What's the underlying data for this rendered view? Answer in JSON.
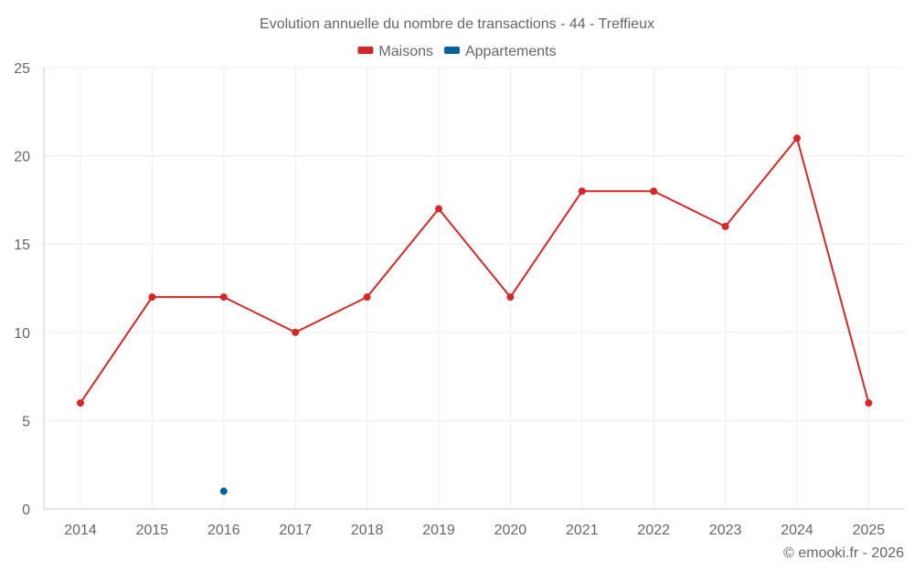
{
  "chart_data": {
    "type": "line",
    "title": "Evolution annuelle du nombre de transactions - 44 - Treffieux",
    "xlabel": "",
    "ylabel": "",
    "categories": [
      "2014",
      "2015",
      "2016",
      "2017",
      "2018",
      "2019",
      "2020",
      "2021",
      "2022",
      "2023",
      "2024",
      "2025"
    ],
    "ylim": [
      0,
      25
    ],
    "yticks": [
      0,
      5,
      10,
      15,
      20,
      25
    ],
    "grid": true,
    "legend_position": "top-center",
    "series": [
      {
        "name": "Maisons",
        "color": "#d62728",
        "values": [
          6,
          12,
          12,
          10,
          12,
          17,
          12,
          18,
          18,
          16,
          21,
          6
        ]
      },
      {
        "name": "Appartements",
        "color": "#08619a",
        "values": [
          null,
          null,
          1,
          null,
          null,
          null,
          null,
          null,
          null,
          null,
          null,
          null
        ]
      }
    ]
  },
  "credit": "© emooki.fr - 2026"
}
